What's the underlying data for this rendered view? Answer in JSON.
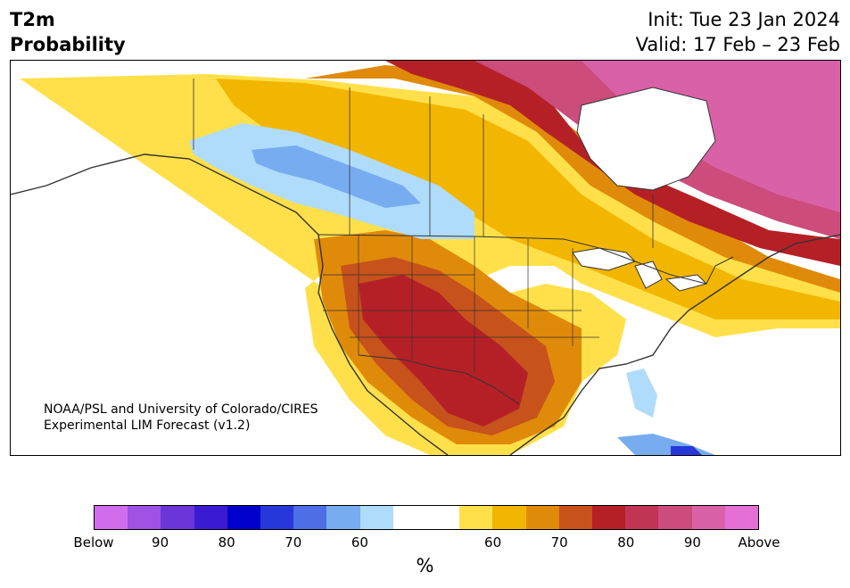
{
  "header": {
    "variable": "T2m",
    "product": "Probability",
    "init": "Init: Tue 23 Jan 2024",
    "valid": "Valid: 17 Feb – 23 Feb"
  },
  "credit": {
    "line1": "NOAA/PSL and University of Colorado/CIRES",
    "line2": "Experimental LIM Forecast (v1.2)"
  },
  "colorbar": {
    "colors": [
      "#d16ded",
      "#9f52e3",
      "#6b35d9",
      "#3a1bd2",
      "#0000cc",
      "#2738da",
      "#4d6ee4",
      "#77adf0",
      "#b0dcfb",
      "#ffffff",
      "#ffffff",
      "#ffe04a",
      "#f3b600",
      "#e08a0a",
      "#c7521b",
      "#b52026",
      "#c13454",
      "#cc4c7b",
      "#d961a7",
      "#e36fd7"
    ],
    "tick_labels": [
      "Below",
      "90",
      "80",
      "70",
      "60",
      "60",
      "70",
      "80",
      "90",
      "Above"
    ],
    "unit": "%"
  },
  "map_colors": {
    "ocean": "#ffffff",
    "land": "#ffffff",
    "border": "#333333"
  }
}
